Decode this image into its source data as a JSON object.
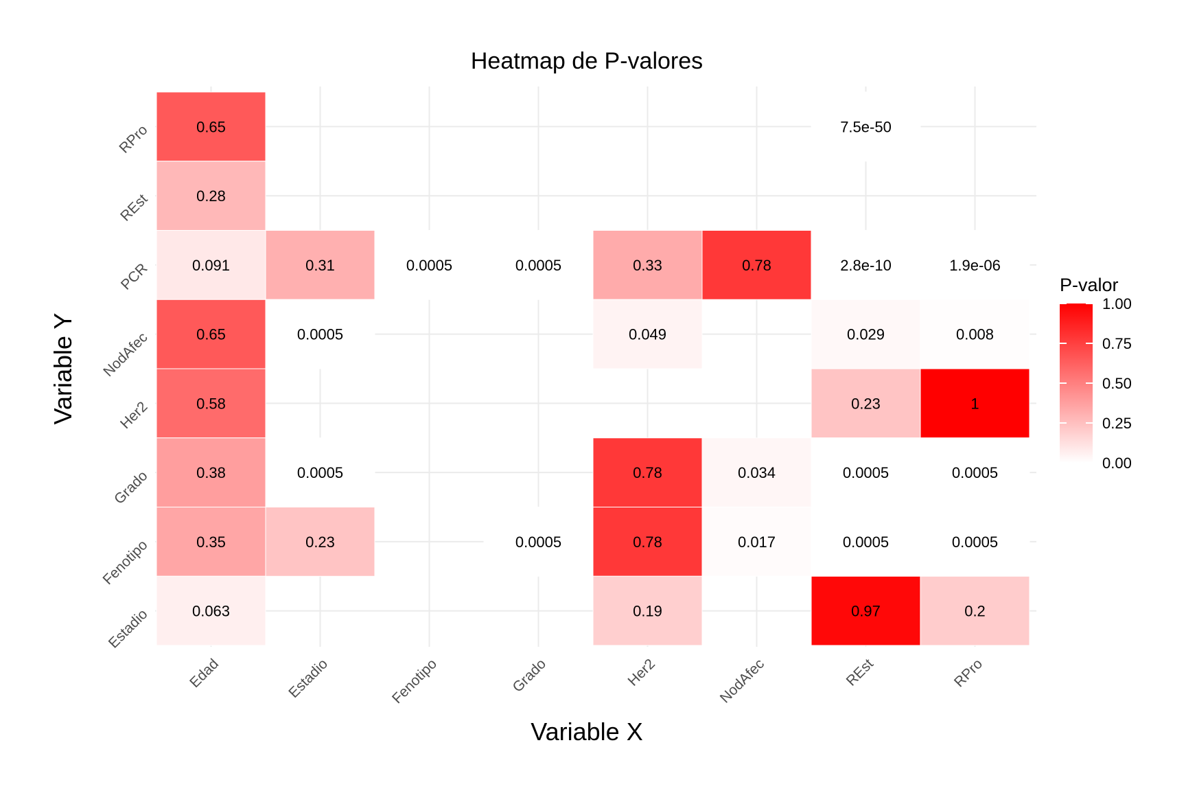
{
  "chart_data": {
    "type": "heatmap",
    "title": "Heatmap de P-valores",
    "xlabel": "Variable X",
    "ylabel": "Variable Y",
    "x_categories": [
      "Edad",
      "Estadio",
      "Fenotipo",
      "Grado",
      "Her2",
      "NodAfec",
      "REst",
      "RPro"
    ],
    "y_categories": [
      "Estadio",
      "Fenotipo",
      "Grado",
      "Her2",
      "NodAfec",
      "PCR",
      "REst",
      "RPro"
    ],
    "grid": true,
    "cells": [
      {
        "x": "Edad",
        "y": "RPro",
        "value": 0.65,
        "label": "0.65"
      },
      {
        "x": "REst",
        "y": "RPro",
        "value": 7.5e-50,
        "label": "7.5e-50"
      },
      {
        "x": "Edad",
        "y": "REst",
        "value": 0.28,
        "label": "0.28"
      },
      {
        "x": "Edad",
        "y": "PCR",
        "value": 0.091,
        "label": "0.091"
      },
      {
        "x": "Estadio",
        "y": "PCR",
        "value": 0.31,
        "label": "0.31"
      },
      {
        "x": "Fenotipo",
        "y": "PCR",
        "value": 0.0005,
        "label": "0.0005"
      },
      {
        "x": "Grado",
        "y": "PCR",
        "value": 0.0005,
        "label": "0.0005"
      },
      {
        "x": "Her2",
        "y": "PCR",
        "value": 0.33,
        "label": "0.33"
      },
      {
        "x": "NodAfec",
        "y": "PCR",
        "value": 0.78,
        "label": "0.78"
      },
      {
        "x": "REst",
        "y": "PCR",
        "value": 2.8e-10,
        "label": "2.8e-10"
      },
      {
        "x": "RPro",
        "y": "PCR",
        "value": 1.9e-06,
        "label": "1.9e-06"
      },
      {
        "x": "Edad",
        "y": "NodAfec",
        "value": 0.65,
        "label": "0.65"
      },
      {
        "x": "Estadio",
        "y": "NodAfec",
        "value": 0.0005,
        "label": "0.0005"
      },
      {
        "x": "Her2",
        "y": "NodAfec",
        "value": 0.049,
        "label": "0.049"
      },
      {
        "x": "REst",
        "y": "NodAfec",
        "value": 0.029,
        "label": "0.029"
      },
      {
        "x": "RPro",
        "y": "NodAfec",
        "value": 0.008,
        "label": "0.008"
      },
      {
        "x": "Edad",
        "y": "Her2",
        "value": 0.58,
        "label": "0.58"
      },
      {
        "x": "REst",
        "y": "Her2",
        "value": 0.23,
        "label": "0.23"
      },
      {
        "x": "RPro",
        "y": "Her2",
        "value": 1,
        "label": "1"
      },
      {
        "x": "Edad",
        "y": "Grado",
        "value": 0.38,
        "label": "0.38"
      },
      {
        "x": "Estadio",
        "y": "Grado",
        "value": 0.0005,
        "label": "0.0005"
      },
      {
        "x": "Her2",
        "y": "Grado",
        "value": 0.78,
        "label": "0.78"
      },
      {
        "x": "NodAfec",
        "y": "Grado",
        "value": 0.034,
        "label": "0.034"
      },
      {
        "x": "REst",
        "y": "Grado",
        "value": 0.0005,
        "label": "0.0005"
      },
      {
        "x": "RPro",
        "y": "Grado",
        "value": 0.0005,
        "label": "0.0005"
      },
      {
        "x": "Edad",
        "y": "Fenotipo",
        "value": 0.35,
        "label": "0.35"
      },
      {
        "x": "Estadio",
        "y": "Fenotipo",
        "value": 0.23,
        "label": "0.23"
      },
      {
        "x": "Grado",
        "y": "Fenotipo",
        "value": 0.0005,
        "label": "0.0005"
      },
      {
        "x": "Her2",
        "y": "Fenotipo",
        "value": 0.78,
        "label": "0.78"
      },
      {
        "x": "NodAfec",
        "y": "Fenotipo",
        "value": 0.017,
        "label": "0.017"
      },
      {
        "x": "REst",
        "y": "Fenotipo",
        "value": 0.0005,
        "label": "0.0005"
      },
      {
        "x": "RPro",
        "y": "Fenotipo",
        "value": 0.0005,
        "label": "0.0005"
      },
      {
        "x": "Edad",
        "y": "Estadio",
        "value": 0.063,
        "label": "0.063"
      },
      {
        "x": "Her2",
        "y": "Estadio",
        "value": 0.19,
        "label": "0.19"
      },
      {
        "x": "REst",
        "y": "Estadio",
        "value": 0.97,
        "label": "0.97"
      },
      {
        "x": "RPro",
        "y": "Estadio",
        "value": 0.2,
        "label": "0.2"
      }
    ],
    "legend": {
      "title": "P-valor",
      "placement": "right",
      "low_color": "#ffffff",
      "high_color": "#ff0000",
      "ticks": [
        "1.00",
        "0.75",
        "0.50",
        "0.25",
        "0.00"
      ],
      "tick_values": [
        1,
        0.75,
        0.5,
        0.25,
        0
      ],
      "range": [
        0,
        1
      ]
    }
  }
}
